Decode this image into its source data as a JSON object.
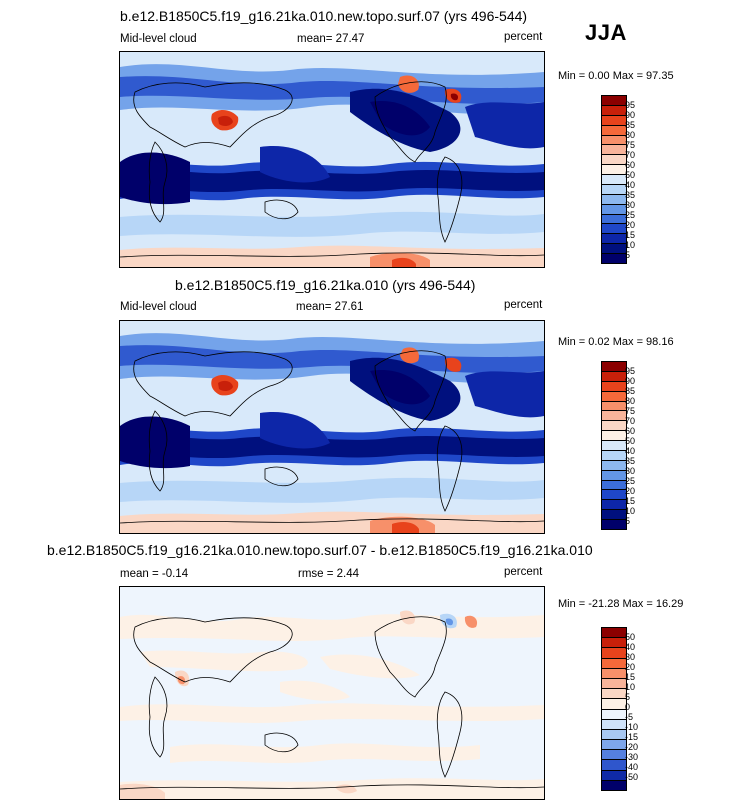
{
  "season": "JJA",
  "panels": [
    {
      "title": "b.e12.B1850C5.f19_g16.21ka.010.new.topo.surf.07 (yrs 496-544)",
      "left_label": "Mid-level cloud",
      "center_label": "mean=  27.47",
      "right_label": "percent",
      "minmax": "Min =   0.00 Max =  97.35",
      "colorbar": {
        "ticks": [
          "95",
          "90",
          "85",
          "80",
          "75",
          "70",
          "60",
          "50",
          "40",
          "35",
          "30",
          "25",
          "20",
          "15",
          "10",
          "5"
        ],
        "colors": [
          "#8b0000",
          "#c8200a",
          "#e8431c",
          "#f5693a",
          "#f7906a",
          "#f8b49a",
          "#fad7c5",
          "#fdf1e6",
          "#d8e9fa",
          "#b7d6f7",
          "#8db8ef",
          "#6396e6",
          "#3c6ed9",
          "#1f47c8",
          "#0d26a8",
          "#00107e",
          "#00006a"
        ]
      }
    },
    {
      "title": "b.e12.B1850C5.f19_g16.21ka.010 (yrs 496-544)",
      "left_label": "Mid-level cloud",
      "center_label": "mean=  27.61",
      "right_label": "percent",
      "minmax": "Min =  0.02 Max =  98.16",
      "colorbar": {
        "ticks": [
          "95",
          "90",
          "85",
          "80",
          "75",
          "70",
          "60",
          "50",
          "40",
          "35",
          "30",
          "25",
          "20",
          "15",
          "10",
          "5"
        ],
        "colors": [
          "#8b0000",
          "#c8200a",
          "#e8431c",
          "#f5693a",
          "#f7906a",
          "#f8b49a",
          "#fad7c5",
          "#fdf1e6",
          "#d8e9fa",
          "#b7d6f7",
          "#8db8ef",
          "#6396e6",
          "#3c6ed9",
          "#1f47c8",
          "#0d26a8",
          "#00107e",
          "#00006a"
        ]
      }
    },
    {
      "title": "b.e12.B1850C5.f19_g16.21ka.010.new.topo.surf.07 - b.e12.B1850C5.f19_g16.21ka.010",
      "left_label": "mean =  -0.14",
      "center_label": "rmse =   2.44",
      "right_label": "percent",
      "minmax": "Min = -21.28 Max =  16.29",
      "colorbar": {
        "ticks": [
          "50",
          "40",
          "30",
          "20",
          "15",
          "10",
          "5",
          "0",
          "-5",
          "-10",
          "-15",
          "-20",
          "-30",
          "-40",
          "-50"
        ],
        "colors": [
          "#8b0000",
          "#c8200a",
          "#e8431c",
          "#f5693a",
          "#f7906a",
          "#f8b49a",
          "#fad7c5",
          "#fdf1e6",
          "#eef5fd",
          "#d0e3f9",
          "#a8c8f2",
          "#7ea6ea",
          "#5580df",
          "#2f56cc",
          "#0f2aa6",
          "#00006a"
        ]
      }
    }
  ]
}
